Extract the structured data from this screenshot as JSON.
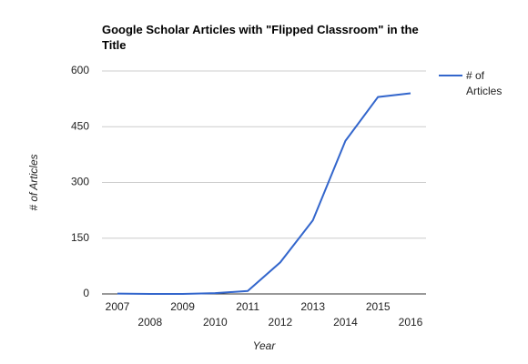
{
  "chart_data": {
    "type": "line",
    "title": "Google Scholar Articles with \"Flipped Classroom\" in the Title",
    "x_label": "Year",
    "y_label": "# of Articles",
    "categories": [
      "2007",
      "2008",
      "2009",
      "2010",
      "2011",
      "2012",
      "2013",
      "2014",
      "2015",
      "2016"
    ],
    "series": [
      {
        "name": "# of Articles",
        "color": "#3366cc",
        "values": [
          1,
          0,
          0,
          2,
          8,
          85,
          198,
          412,
          530,
          540
        ]
      }
    ],
    "ylim": [
      0,
      600
    ],
    "yticks": [
      0,
      150,
      300,
      450,
      600
    ],
    "grid": true,
    "legend": "right"
  }
}
